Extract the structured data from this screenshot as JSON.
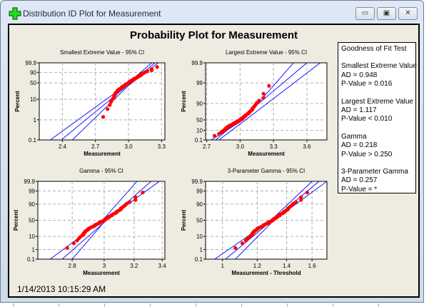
{
  "window": {
    "title": "Distribution ID Plot for Measurement",
    "buttons": {
      "minimize": "▭",
      "maximize": "▣",
      "close": "✕"
    }
  },
  "main_title": "Probability Plot for Measurement",
  "timestamp": "1/14/2013 10:15:29 AM",
  "goodness_of_fit": {
    "title": "Goodness of Fit Test",
    "tests": [
      {
        "name": "Smallest Extreme Value",
        "ad": "AD = 0.948",
        "p": "P-Value = 0.016"
      },
      {
        "name": "Largest Extreme Value",
        "ad": "AD = 1.117",
        "p": "P-Value < 0.010"
      },
      {
        "name": "Gamma",
        "ad": "AD = 0.218",
        "p": "P-Value > 0.250"
      },
      {
        "name": "3-Parameter Gamma",
        "ad": "AD = 0.257",
        "p": "P-Value = *"
      }
    ]
  },
  "colors": {
    "points": "#ff0000",
    "lines": "#0000ff",
    "grid": "#b0b0b0"
  },
  "chart_data": [
    {
      "type": "scatter",
      "title": "Smallest Extreme Value - 95% CI",
      "xlabel": "Measurement",
      "ylabel": "Percent",
      "yscale": "sev",
      "xscale": "linear",
      "xlim": [
        2.19,
        3.33
      ],
      "xticks": [
        "2.4",
        "2.7",
        "3.0",
        "3.3"
      ],
      "yticks": [
        "0.1",
        "1",
        "10",
        "50",
        "90",
        "99.9"
      ],
      "threshold": 0,
      "lines": [
        [
          [
            2.29,
            0.1
          ],
          [
            2.97,
            40
          ],
          [
            3.21,
            99.9
          ]
        ],
        [
          [
            2.39,
            0.1
          ],
          [
            3.24,
            99.9
          ]
        ],
        [
          [
            2.49,
            0.1
          ],
          [
            3.0,
            40
          ],
          [
            3.27,
            99.9
          ]
        ]
      ]
    },
    {
      "type": "scatter",
      "title": "Largest Extreme Value - 95% CI",
      "xlabel": "Measurement",
      "ylabel": "Percent",
      "yscale": "lev",
      "xscale": "linear",
      "xlim": [
        2.69,
        3.78
      ],
      "xticks": [
        "2.7",
        "3.0",
        "3.3",
        "3.6"
      ],
      "yticks": [
        "0.1",
        "10",
        "50",
        "90",
        "99",
        "99.9"
      ],
      "threshold": 0,
      "lines": [
        [
          [
            2.74,
            0.1
          ],
          [
            3.03,
            50
          ],
          [
            3.48,
            99.9
          ]
        ],
        [
          [
            2.78,
            0.1
          ],
          [
            3.6,
            99.9
          ]
        ],
        [
          [
            2.81,
            0.1
          ],
          [
            3.05,
            50
          ],
          [
            3.72,
            99.9
          ]
        ]
      ]
    },
    {
      "type": "scatter",
      "title": "Gamma - 95% CI",
      "xlabel": "Measurement",
      "ylabel": "Percent",
      "yscale": "normal",
      "xscale": "log",
      "xlim": [
        2.6,
        3.42
      ],
      "xticks": [
        "2.8",
        "3",
        "3.2",
        "3.4"
      ],
      "yticks": [
        "0.1",
        "1",
        "10",
        "50",
        "90",
        "99",
        "99.9"
      ],
      "threshold": 0,
      "lines": [
        [
          [
            2.67,
            0.1
          ],
          [
            2.99,
            50
          ],
          [
            3.22,
            99.9
          ]
        ],
        [
          [
            2.74,
            0.1
          ],
          [
            3.32,
            99.9
          ]
        ],
        [
          [
            2.8,
            0.1
          ],
          [
            3.01,
            50
          ],
          [
            3.38,
            99.9
          ]
        ]
      ]
    },
    {
      "type": "scatter",
      "title": "3-Parameter Gamma - 95% CI",
      "xlabel": "Measurement - Threshold",
      "ylabel": "Percent",
      "yscale": "normal",
      "xscale": "log",
      "xlim": [
        0.915,
        1.73
      ],
      "xticks": [
        "1",
        "1.2",
        "1.4",
        "1.6"
      ],
      "yticks": [
        "0.1",
        "1",
        "10",
        "50",
        "90",
        "99",
        "99.9"
      ],
      "threshold": 1.7,
      "lines": [
        [
          [
            0.96,
            0.1
          ],
          [
            1.29,
            50
          ],
          [
            1.6,
            99.9
          ]
        ],
        [
          [
            1.016,
            0.1
          ],
          [
            1.66,
            99.9
          ]
        ],
        [
          [
            1.07,
            0.1
          ],
          [
            1.31,
            50
          ],
          [
            1.73,
            99.9
          ]
        ]
      ]
    }
  ],
  "sample": [
    2.77,
    2.81,
    2.83,
    2.84,
    2.85,
    2.86,
    2.87,
    2.87,
    2.88,
    2.88,
    2.89,
    2.9,
    2.9,
    2.91,
    2.92,
    2.93,
    2.94,
    2.94,
    2.95,
    2.96,
    2.97,
    2.97,
    2.98,
    2.99,
    3.0,
    3.0,
    3.01,
    3.01,
    3.02,
    3.03,
    3.03,
    3.04,
    3.05,
    3.05,
    3.06,
    3.07,
    3.08,
    3.08,
    3.09,
    3.1,
    3.11,
    3.11,
    3.12,
    3.13,
    3.14,
    3.15,
    3.17,
    3.21,
    3.21,
    3.26
  ]
}
